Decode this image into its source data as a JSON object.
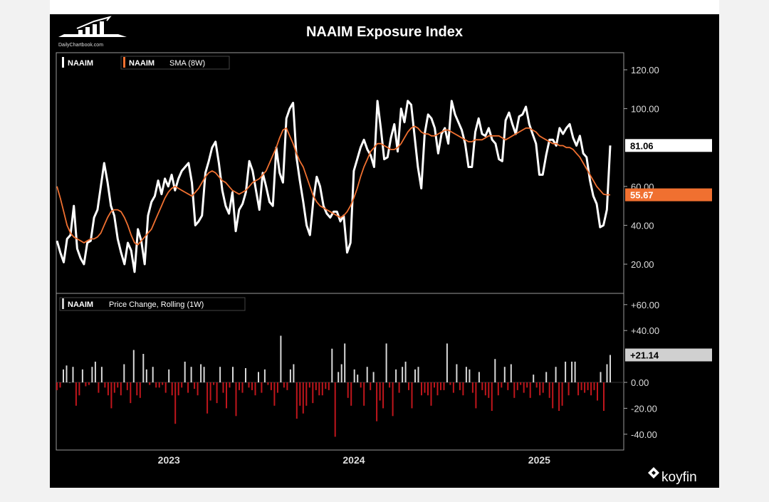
{
  "watermark": {
    "text": "DailyChartbook.com"
  },
  "brand": {
    "text": "koyfin"
  },
  "chart_data": [
    {
      "type": "line",
      "title": "NAAIM Exposure Index",
      "legend": [
        {
          "label": "NAAIM",
          "color": "#ffffff"
        },
        {
          "label": "NAAIM",
          "label2": "SMA (8W)",
          "color": "#f07030"
        }
      ],
      "ylim": [
        0,
        125
      ],
      "yticks": [
        "120.00",
        "100.00",
        "60.00",
        "40.00",
        "20.00"
      ],
      "ytick_values": [
        120,
        100,
        60,
        40,
        20
      ],
      "last_values": [
        {
          "label": "81.06",
          "value": 81.06,
          "bg": "#ffffff",
          "fg": "#000000"
        },
        {
          "label": "55.67",
          "value": 55.67,
          "bg": "#f07030",
          "fg": "#ffffff"
        }
      ],
      "xticks": [
        "2023",
        "2024",
        "2025"
      ],
      "x_start": "2022-05-25",
      "x_end": "2025-05-21",
      "series": [
        {
          "name": "NAAIM",
          "color": "#ffffff",
          "values": [
            32,
            26,
            21,
            33,
            35,
            50,
            28,
            23,
            20,
            31,
            32,
            44,
            48,
            60,
            72,
            62,
            50,
            45,
            33,
            26,
            20,
            31,
            27,
            16,
            38,
            32,
            20,
            45,
            52,
            55,
            63,
            56,
            64,
            60,
            66,
            58,
            64,
            68,
            70,
            72,
            62,
            40,
            42,
            45,
            67,
            73,
            80,
            83,
            72,
            58,
            50,
            46,
            57,
            37,
            48,
            51,
            57,
            73,
            68,
            58,
            48,
            67,
            60,
            52,
            50,
            80,
            67,
            62,
            95,
            100,
            103,
            75,
            63,
            52,
            40,
            35,
            53,
            65,
            60,
            50,
            46,
            44,
            47,
            47,
            42,
            45,
            26,
            31,
            68,
            74,
            80,
            84,
            79,
            76,
            70,
            104,
            90,
            74,
            75,
            85,
            92,
            78,
            100,
            93,
            104,
            102,
            86,
            70,
            59,
            87,
            97,
            95,
            90,
            77,
            87,
            90,
            82,
            104,
            97,
            93,
            89,
            82,
            70,
            70,
            88,
            95,
            87,
            86,
            90,
            84,
            82,
            74,
            73,
            94,
            98,
            92,
            87,
            96,
            97,
            101,
            92,
            87,
            82,
            66,
            66,
            76,
            84,
            84,
            81,
            90,
            87,
            90,
            92,
            85,
            81,
            86,
            77,
            75,
            63,
            55,
            51,
            39,
            40,
            48,
            81.06
          ]
        },
        {
          "name": "NAAIM SMA (8W)",
          "color": "#f07030",
          "values": [
            60,
            54,
            47,
            40,
            36,
            34,
            33,
            32,
            31,
            32,
            33,
            33,
            34,
            36,
            40,
            44,
            47,
            48,
            48,
            47,
            44,
            40,
            35,
            31,
            30,
            32,
            34,
            36,
            38,
            42,
            46,
            50,
            54,
            57,
            59,
            60,
            59,
            58,
            57,
            56,
            55,
            57,
            59,
            62,
            65,
            67,
            68,
            67,
            65,
            63,
            62,
            60,
            58,
            57,
            56,
            57,
            58,
            60,
            62,
            63,
            64,
            66,
            68,
            72,
            76,
            80,
            85,
            89,
            90,
            86,
            82,
            77,
            73,
            70,
            65,
            60,
            55,
            52,
            50,
            49,
            48,
            47,
            46,
            45,
            44,
            45,
            47,
            50,
            54,
            59,
            65,
            70,
            74,
            78,
            80,
            82,
            82,
            81,
            80,
            79,
            79,
            80,
            82,
            85,
            88,
            90,
            91,
            90,
            88,
            87,
            87,
            86,
            86,
            87,
            88,
            89,
            89,
            88,
            87,
            86,
            85,
            84,
            83,
            83,
            84,
            84,
            84,
            85,
            86,
            86,
            86,
            86,
            85,
            84,
            85,
            86,
            87,
            88,
            89,
            90,
            90,
            89,
            88,
            86,
            85,
            84,
            83,
            82,
            82,
            81,
            81,
            80,
            80,
            79,
            77,
            75,
            72,
            69,
            66,
            63,
            60,
            58,
            56,
            55.67,
            55.67
          ]
        }
      ]
    },
    {
      "type": "bar",
      "legend": [
        {
          "label": "NAAIM",
          "label2": "Price Change, Rolling (1W)",
          "color": "#cccccc"
        }
      ],
      "ylim": [
        -55,
        65
      ],
      "yticks": [
        "+60.00",
        "+40.00",
        "0.00",
        "-20.00",
        "-40.00"
      ],
      "ytick_values": [
        60,
        40,
        0,
        -20,
        -40
      ],
      "last_value": {
        "label": "+21.14",
        "value": 21.14,
        "bg": "#d0d0d0",
        "fg": "#000000"
      },
      "positive_color": "#d8d8d8",
      "negative_color": "#c0161c",
      "values": [
        -6,
        -4,
        10,
        13,
        0,
        12,
        -18,
        -10,
        10,
        -3,
        -2,
        12,
        16,
        -8,
        12,
        -4,
        -10,
        -20,
        -8,
        -4,
        -10,
        14,
        -6,
        -16,
        25,
        -10,
        -12,
        22,
        10,
        -2,
        12,
        -4,
        -4,
        -2,
        -8,
        10,
        -10,
        -32,
        -10,
        -4,
        16,
        -8,
        12,
        -5,
        -10,
        14,
        12,
        -24,
        -14,
        -2,
        -16,
        12,
        -8,
        -20,
        -4,
        12,
        -26,
        -6,
        -8,
        11,
        -4,
        -6,
        -10,
        8,
        -8,
        10,
        -2,
        -6,
        -18,
        -8,
        36,
        -4,
        -6,
        10,
        14,
        -28,
        -18,
        -24,
        -18,
        -4,
        -16,
        -6,
        -10,
        -10,
        -5,
        -6,
        26,
        -42,
        8,
        14,
        30,
        -12,
        -18,
        10,
        6,
        -4,
        -18,
        12,
        -6,
        8,
        -30,
        -14,
        -20,
        30,
        -4,
        -26,
        10,
        -8,
        12,
        16,
        -6,
        -20,
        10,
        12,
        -10,
        -8,
        -10,
        -18,
        -4,
        -10,
        -6,
        -6,
        30,
        -2,
        -8,
        14,
        -6,
        -10,
        12,
        10,
        -8,
        -20,
        8,
        -6,
        -10,
        -12,
        -22,
        18,
        -10,
        -4,
        12,
        -6,
        14,
        -12,
        -6,
        -2,
        -8,
        -4,
        -12,
        6,
        -4,
        -10,
        -8,
        8,
        -12,
        -20,
        12,
        -22,
        -18,
        16,
        -10,
        16,
        16,
        -10,
        -6,
        -8,
        -6,
        -10,
        -6,
        -14,
        8,
        -22,
        14,
        21.14
      ]
    }
  ]
}
